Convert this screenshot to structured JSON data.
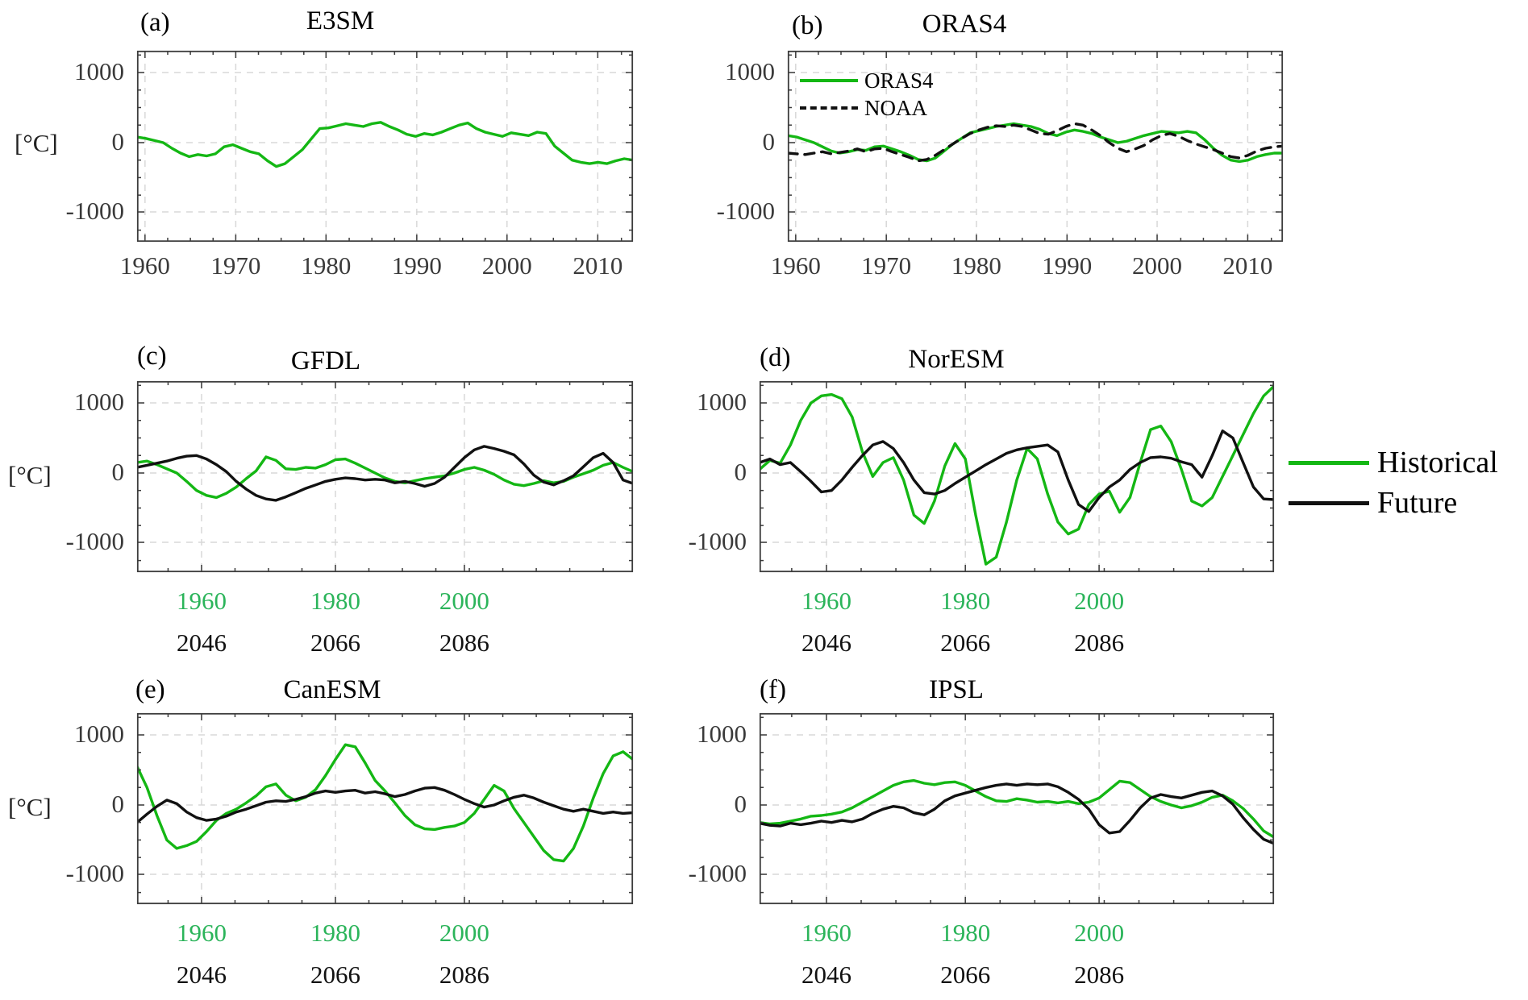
{
  "figure": {
    "ylabel": "[°C]",
    "colors": {
      "historical": "#14b714",
      "future": "#111111",
      "hist_tick_label": "#2bb45a",
      "future_tick_label": "#111111",
      "axis_tick_label": "#3a3a3a",
      "grid": "#d8d8d8",
      "spine": "#3c3c3c"
    },
    "legend_right": {
      "items": [
        {
          "label": "Historical",
          "color_key": "historical",
          "dash": false
        },
        {
          "label": "Future",
          "color_key": "future",
          "dash": false
        }
      ]
    }
  },
  "chart_data": [
    {
      "id": "a",
      "letter": "(a)",
      "title": "E3SM",
      "type": "line",
      "ylabel": "[°C]",
      "ylim": [
        -1414,
        1310
      ],
      "grid": true,
      "yticks": {
        "labels": [
          "1000",
          "0",
          "-1000"
        ],
        "values": [
          1000,
          0,
          -1000
        ],
        "fracs": [
          0.114,
          0.481,
          0.844
        ]
      },
      "x_axis": {
        "mode": "single",
        "ticks": {
          "labels": [
            "1960",
            "1970",
            "1980",
            "1990",
            "2000",
            "2010"
          ],
          "fracs": [
            0.016,
            0.199,
            0.381,
            0.564,
            0.746,
            0.929
          ]
        }
      },
      "series": [
        {
          "name": "E3SM historical",
          "color_key": "historical",
          "dash": false,
          "x0": 0,
          "dx": 0.017544,
          "values": [
            80,
            60,
            30,
            0,
            -80,
            -150,
            -200,
            -170,
            -190,
            -160,
            -60,
            -30,
            -80,
            -130,
            -160,
            -260,
            -340,
            -300,
            -200,
            -100,
            50,
            200,
            210,
            240,
            270,
            250,
            230,
            270,
            290,
            230,
            180,
            120,
            90,
            130,
            110,
            150,
            200,
            250,
            280,
            200,
            150,
            120,
            90,
            140,
            120,
            100,
            150,
            130,
            -50,
            -150,
            -250,
            -280,
            -300,
            -280,
            -300,
            -260,
            -230,
            -250
          ]
        }
      ]
    },
    {
      "id": "b",
      "letter": "(b)",
      "title": "ORAS4",
      "type": "line",
      "ylim": [
        -1414,
        1310
      ],
      "grid": true,
      "yticks": {
        "labels": [
          "1000",
          "0",
          "-1000"
        ],
        "values": [
          1000,
          0,
          -1000
        ],
        "fracs": [
          0.114,
          0.481,
          0.844
        ]
      },
      "x_axis": {
        "mode": "single",
        "ticks": {
          "labels": [
            "1960",
            "1970",
            "1980",
            "1990",
            "2000",
            "2010"
          ],
          "fracs": [
            0.016,
            0.199,
            0.381,
            0.564,
            0.746,
            0.929
          ]
        }
      },
      "legend": {
        "items": [
          {
            "label": "ORAS4",
            "color_key": "historical",
            "dash": false
          },
          {
            "label": "NOAA",
            "color_key": "future",
            "dash": true
          }
        ]
      },
      "series": [
        {
          "name": "ORAS4",
          "color_key": "historical",
          "dash": false,
          "x0": 0,
          "dx": 0.017544,
          "values": [
            100,
            80,
            40,
            0,
            -60,
            -120,
            -150,
            -130,
            -100,
            -110,
            -60,
            -50,
            -90,
            -130,
            -180,
            -240,
            -260,
            -220,
            -120,
            -20,
            60,
            140,
            170,
            200,
            230,
            250,
            270,
            250,
            230,
            190,
            130,
            100,
            150,
            180,
            160,
            130,
            80,
            40,
            0,
            20,
            60,
            100,
            130,
            160,
            150,
            140,
            160,
            140,
            40,
            -80,
            -180,
            -250,
            -270,
            -250,
            -200,
            -170,
            -150,
            -150
          ]
        },
        {
          "name": "NOAA",
          "color_key": "future",
          "dash": true,
          "x0": 0,
          "dx": 0.017544,
          "values": [
            -150,
            -160,
            -170,
            -150,
            -130,
            -160,
            -140,
            -120,
            -90,
            -130,
            -90,
            -80,
            -130,
            -170,
            -210,
            -260,
            -240,
            -180,
            -100,
            -20,
            60,
            130,
            180,
            220,
            240,
            230,
            250,
            230,
            180,
            130,
            120,
            170,
            230,
            270,
            250,
            180,
            100,
            0,
            -80,
            -130,
            -90,
            -40,
            40,
            100,
            130,
            90,
            30,
            -20,
            -60,
            -100,
            -150,
            -200,
            -220,
            -180,
            -120,
            -80,
            -60,
            -50
          ]
        }
      ]
    },
    {
      "id": "c",
      "letter": "(c)",
      "title": "GFDL",
      "type": "line",
      "ylim": [
        -1414,
        1310
      ],
      "grid": true,
      "yticks": {
        "labels": [
          "1000",
          "0",
          "-1000"
        ],
        "values": [
          1000,
          0,
          -1000
        ],
        "fracs": [
          0.114,
          0.481,
          0.844
        ]
      },
      "x_axis": {
        "mode": "dual",
        "historical_ticks": {
          "labels": [
            "1960",
            "1980",
            "2000"
          ],
          "fracs": [
            0.13,
            0.4,
            0.66
          ]
        },
        "future_ticks": {
          "labels": [
            "2046",
            "2066",
            "2086"
          ],
          "fracs": [
            0.13,
            0.4,
            0.66
          ]
        }
      },
      "series": [
        {
          "name": "GFDL historical",
          "color_key": "historical",
          "dash": false,
          "x0": 0,
          "dx": 0.02,
          "values": [
            150,
            170,
            120,
            60,
            0,
            -120,
            -250,
            -320,
            -350,
            -290,
            -200,
            -80,
            30,
            230,
            180,
            60,
            50,
            80,
            70,
            120,
            190,
            200,
            140,
            70,
            0,
            -70,
            -120,
            -140,
            -110,
            -80,
            -60,
            -40,
            0,
            50,
            80,
            40,
            -20,
            -100,
            -160,
            -180,
            -150,
            -110,
            -140,
            -120,
            -60,
            -10,
            40,
            110,
            150,
            80,
            20
          ]
        },
        {
          "name": "GFDL future",
          "color_key": "future",
          "dash": false,
          "x0": 0,
          "dx": 0.02,
          "values": [
            80,
            110,
            140,
            170,
            210,
            240,
            250,
            200,
            120,
            20,
            -120,
            -230,
            -320,
            -370,
            -390,
            -340,
            -280,
            -220,
            -170,
            -120,
            -90,
            -70,
            -80,
            -100,
            -90,
            -100,
            -140,
            -120,
            -150,
            -190,
            -150,
            -60,
            80,
            220,
            330,
            380,
            350,
            310,
            260,
            130,
            -30,
            -130,
            -170,
            -110,
            -40,
            90,
            220,
            280,
            150,
            -100,
            -150
          ]
        }
      ]
    },
    {
      "id": "d",
      "letter": "(d)",
      "title": "NorESM",
      "type": "line",
      "ylim": [
        -1414,
        1310
      ],
      "grid": true,
      "yticks": {
        "labels": [
          "1000",
          "0",
          "-1000"
        ],
        "values": [
          1000,
          0,
          -1000
        ],
        "fracs": [
          0.114,
          0.481,
          0.844
        ]
      },
      "x_axis": {
        "mode": "dual",
        "historical_ticks": {
          "labels": [
            "1960",
            "1980",
            "2000"
          ],
          "fracs": [
            0.13,
            0.4,
            0.66
          ]
        },
        "future_ticks": {
          "labels": [
            "2046",
            "2066",
            "2086"
          ],
          "fracs": [
            0.13,
            0.4,
            0.66
          ]
        }
      },
      "series": [
        {
          "name": "NorESM historical",
          "color_key": "historical",
          "dash": false,
          "x0": 0,
          "dx": 0.02,
          "values": [
            50,
            180,
            140,
            400,
            750,
            1000,
            1100,
            1120,
            1060,
            800,
            300,
            -50,
            150,
            220,
            -100,
            -600,
            -720,
            -400,
            100,
            420,
            200,
            -600,
            -1300,
            -1200,
            -700,
            -100,
            350,
            200,
            -300,
            -700,
            -870,
            -800,
            -450,
            -300,
            -260,
            -560,
            -350,
            150,
            620,
            670,
            450,
            50,
            -400,
            -470,
            -350,
            -50,
            250,
            550,
            850,
            1100,
            1240
          ]
        },
        {
          "name": "NorESM future",
          "color_key": "future",
          "dash": false,
          "x0": 0,
          "dx": 0.02,
          "values": [
            150,
            200,
            120,
            150,
            20,
            -120,
            -270,
            -250,
            -100,
            80,
            250,
            400,
            450,
            350,
            150,
            -100,
            -280,
            -300,
            -250,
            -150,
            -60,
            30,
            120,
            200,
            280,
            330,
            360,
            380,
            400,
            300,
            -100,
            -450,
            -550,
            -350,
            -200,
            -100,
            50,
            150,
            220,
            230,
            210,
            160,
            120,
            -60,
            250,
            600,
            500,
            150,
            -200,
            -370,
            -380
          ]
        }
      ]
    },
    {
      "id": "e",
      "letter": "(e)",
      "title": "CanESM",
      "type": "line",
      "ylim": [
        -1414,
        1310
      ],
      "grid": true,
      "yticks": {
        "labels": [
          "1000",
          "0",
          "-1000"
        ],
        "values": [
          1000,
          0,
          -1000
        ],
        "fracs": [
          0.114,
          0.481,
          0.844
        ]
      },
      "x_axis": {
        "mode": "dual",
        "historical_ticks": {
          "labels": [
            "1960",
            "1980",
            "2000"
          ],
          "fracs": [
            0.13,
            0.4,
            0.66
          ]
        },
        "future_ticks": {
          "labels": [
            "2046",
            "2066",
            "2086"
          ],
          "fracs": [
            0.13,
            0.4,
            0.66
          ]
        }
      },
      "series": [
        {
          "name": "CanESM historical",
          "color_key": "historical",
          "dash": false,
          "x0": 0,
          "dx": 0.02,
          "values": [
            550,
            250,
            -150,
            -500,
            -620,
            -580,
            -520,
            -380,
            -220,
            -120,
            -60,
            30,
            130,
            260,
            300,
            140,
            60,
            110,
            220,
            420,
            650,
            860,
            830,
            600,
            350,
            200,
            30,
            -150,
            -280,
            -340,
            -350,
            -320,
            -300,
            -250,
            -120,
            80,
            280,
            200,
            -50,
            -250,
            -450,
            -650,
            -780,
            -800,
            -620,
            -300,
            100,
            450,
            700,
            760,
            650
          ]
        },
        {
          "name": "CanESM future",
          "color_key": "future",
          "dash": false,
          "x0": 0,
          "dx": 0.02,
          "values": [
            -250,
            -130,
            -20,
            70,
            20,
            -100,
            -180,
            -220,
            -200,
            -160,
            -100,
            -60,
            -10,
            40,
            60,
            50,
            80,
            120,
            170,
            200,
            180,
            200,
            210,
            170,
            190,
            160,
            120,
            150,
            200,
            240,
            250,
            210,
            150,
            80,
            20,
            -30,
            0,
            60,
            110,
            140,
            100,
            40,
            -10,
            -60,
            -90,
            -60,
            -90,
            -120,
            -100,
            -120,
            -110
          ]
        }
      ]
    },
    {
      "id": "f",
      "letter": "(f)",
      "title": "IPSL",
      "type": "line",
      "ylim": [
        -1414,
        1310
      ],
      "grid": true,
      "yticks": {
        "labels": [
          "1000",
          "0",
          "-1000"
        ],
        "values": [
          1000,
          0,
          -1000
        ],
        "fracs": [
          0.114,
          0.481,
          0.844
        ]
      },
      "x_axis": {
        "mode": "dual",
        "historical_ticks": {
          "labels": [
            "1960",
            "1980",
            "2000"
          ],
          "fracs": [
            0.13,
            0.4,
            0.66
          ]
        },
        "future_ticks": {
          "labels": [
            "2046",
            "2066",
            "2086"
          ],
          "fracs": [
            0.13,
            0.4,
            0.66
          ]
        }
      },
      "series": [
        {
          "name": "IPSL historical",
          "color_key": "historical",
          "dash": false,
          "x0": 0,
          "dx": 0.02,
          "values": [
            -250,
            -270,
            -260,
            -230,
            -200,
            -160,
            -150,
            -130,
            -100,
            -40,
            40,
            120,
            200,
            280,
            330,
            350,
            310,
            290,
            320,
            330,
            280,
            200,
            120,
            60,
            50,
            90,
            70,
            40,
            50,
            30,
            50,
            20,
            40,
            100,
            220,
            340,
            320,
            220,
            120,
            50,
            0,
            -40,
            -10,
            40,
            110,
            140,
            60,
            -50,
            -200,
            -370,
            -460
          ]
        },
        {
          "name": "IPSL future",
          "color_key": "future",
          "dash": false,
          "x0": 0,
          "dx": 0.02,
          "values": [
            -260,
            -290,
            -300,
            -260,
            -280,
            -260,
            -230,
            -250,
            -220,
            -240,
            -200,
            -120,
            -60,
            -20,
            -40,
            -110,
            -140,
            -60,
            60,
            130,
            170,
            210,
            250,
            280,
            300,
            280,
            300,
            290,
            300,
            260,
            180,
            80,
            -60,
            -280,
            -400,
            -380,
            -220,
            -40,
            100,
            150,
            120,
            100,
            140,
            180,
            200,
            130,
            10,
            -180,
            -350,
            -490,
            -550
          ]
        }
      ]
    }
  ]
}
